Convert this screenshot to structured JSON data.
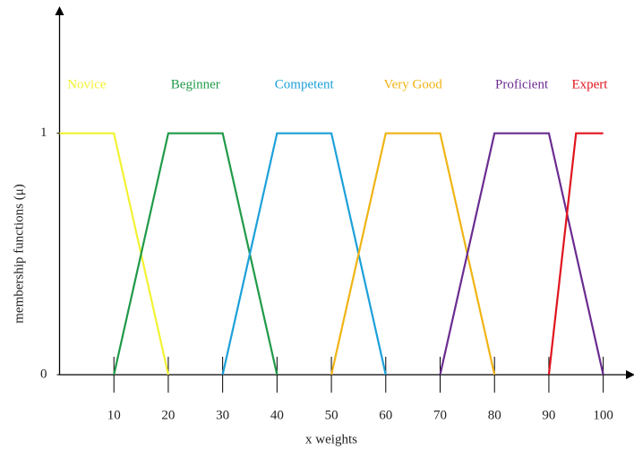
{
  "chart_data": {
    "type": "line",
    "x_label": "x weights",
    "y_label": "membership functions (μ)",
    "xlim": [
      0,
      105
    ],
    "ylim": [
      0,
      1.5
    ],
    "xticks": [
      10,
      20,
      30,
      40,
      50,
      60,
      70,
      80,
      90,
      100
    ],
    "yticks": [
      0,
      1
    ],
    "series": [
      {
        "name": "Novice",
        "color": "#f2f233",
        "x": [
          0,
          10,
          20
        ],
        "values": [
          1,
          1,
          0
        ]
      },
      {
        "name": "Beginner",
        "color": "#1f9a48",
        "x": [
          10,
          20,
          30,
          40
        ],
        "values": [
          0,
          1,
          1,
          0
        ]
      },
      {
        "name": "Competent",
        "color": "#1ca0d9",
        "x": [
          30,
          40,
          50,
          60
        ],
        "values": [
          0,
          1,
          1,
          0
        ]
      },
      {
        "name": "Very Good",
        "color": "#f0b414",
        "x": [
          50,
          60,
          70,
          80
        ],
        "values": [
          0,
          1,
          1,
          0
        ]
      },
      {
        "name": "Proficient",
        "color": "#6a2c90",
        "x": [
          70,
          80,
          90,
          100
        ],
        "values": [
          0,
          1,
          1,
          0
        ]
      },
      {
        "name": "Expert",
        "color": "#e0141e",
        "x": [
          90,
          95,
          100
        ],
        "values": [
          0,
          1,
          1
        ]
      }
    ]
  }
}
